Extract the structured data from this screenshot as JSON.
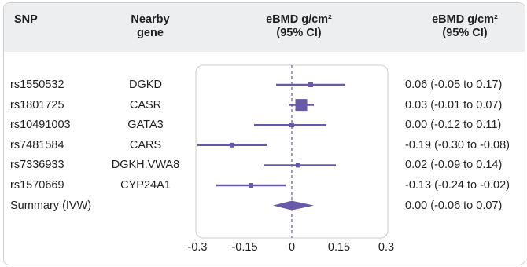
{
  "header": {
    "snp": "SNP",
    "gene_line1": "Nearby",
    "gene_line2": "gene",
    "effect_line1": "eBMD g/cm²",
    "effect_line2": "(95% CI)",
    "ci_line1": "eBMD g/cm²",
    "ci_line2": "(95% CI)"
  },
  "colors": {
    "marker": "#6a58a8",
    "panel_border": "#cccccc",
    "header_bg": "#eceef0"
  },
  "chart_data": {
    "type": "forest",
    "title": "",
    "xlabel": "",
    "ylabel": "",
    "xlim": [
      -0.3,
      0.3
    ],
    "xticks": [
      -0.3,
      -0.15,
      0,
      0.15,
      0.3
    ],
    "xtick_labels": [
      "-0.3",
      "-0.15",
      "0",
      "0.15",
      "0.3"
    ],
    "reference_line": 0,
    "rows": [
      {
        "snp": "rs1550532",
        "gene": "DGKD",
        "estimate": 0.06,
        "lower": -0.05,
        "upper": 0.17,
        "label": "0.06 (-0.05 to 0.17)",
        "weight": "small"
      },
      {
        "snp": "rs1801725",
        "gene": "CASR",
        "estimate": 0.03,
        "lower": -0.01,
        "upper": 0.07,
        "label": "0.03 (-0.01 to 0.07)",
        "weight": "large"
      },
      {
        "snp": "rs10491003",
        "gene": "GATA3",
        "estimate": 0.0,
        "lower": -0.12,
        "upper": 0.11,
        "label": "0.00 (-0.12 to 0.11)",
        "weight": "small"
      },
      {
        "snp": "rs7481584",
        "gene": "CARS",
        "estimate": -0.19,
        "lower": -0.3,
        "upper": -0.08,
        "label": "-0.19 (-0.30 to -0.08)",
        "weight": "small"
      },
      {
        "snp": "rs7336933",
        "gene": "DGKH.VWA8",
        "estimate": 0.02,
        "lower": -0.09,
        "upper": 0.14,
        "label": "0.02 (-0.09 to 0.14)",
        "weight": "small"
      },
      {
        "snp": "rs1570669",
        "gene": "CYP24A1",
        "estimate": -0.13,
        "lower": -0.24,
        "upper": -0.02,
        "label": "-0.13 (-0.24 to -0.02)",
        "weight": "small"
      }
    ],
    "summary": {
      "snp": "Summary (IVW)",
      "estimate": 0.0,
      "lower": -0.06,
      "upper": 0.07,
      "label": "0.00 (-0.06 to 0.07)"
    }
  }
}
